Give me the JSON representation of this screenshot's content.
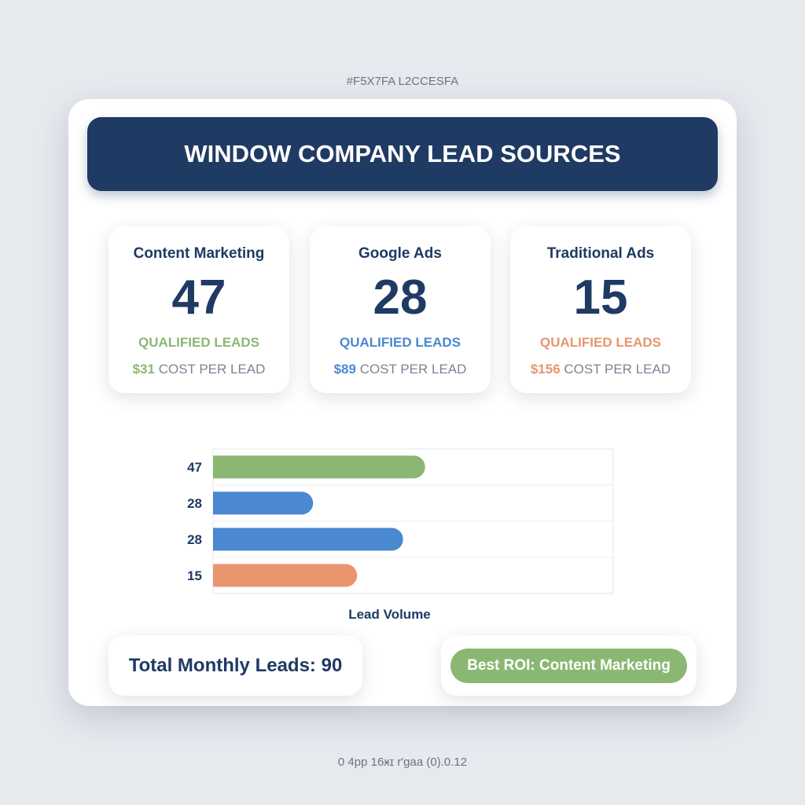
{
  "top_note": "#F5X7FA L2CCESFA",
  "bottom_note": "0 4pp 16ӿɪ r'gaa (0).0.12",
  "title": "WINDOW COMPANY LEAD SOURCES",
  "cards": [
    {
      "name": "Content Marketing",
      "value": "47",
      "label": "QUALIFIED LEADS",
      "cost": "$31",
      "cost_label": "COST PER LEAD",
      "color": "#8ab872"
    },
    {
      "name": "Google Ads",
      "value": "28",
      "label": "QUALIFIED LEADS",
      "cost": "$89",
      "cost_label": "COST PER LEAD",
      "color": "#4a88d0"
    },
    {
      "name": "Traditional Ads",
      "value": "15",
      "label": "QUALIFIED LEADS",
      "cost": "$156",
      "cost_label": "COST PER LEAD",
      "color": "#e8956e"
    }
  ],
  "chart_data": {
    "type": "bar",
    "orientation": "horizontal",
    "categories": [
      "47",
      "28",
      "28",
      "15"
    ],
    "bar_fill_fraction": [
      0.53,
      0.25,
      0.475,
      0.36
    ],
    "colors": [
      "#8ab872",
      "#4a88d0",
      "#4a88d0",
      "#e8956e"
    ],
    "xlabel": "Lead Volume",
    "grid": true
  },
  "total": "Total Monthly Leads: 90",
  "best_roi": "Best ROI: Content Marketing"
}
